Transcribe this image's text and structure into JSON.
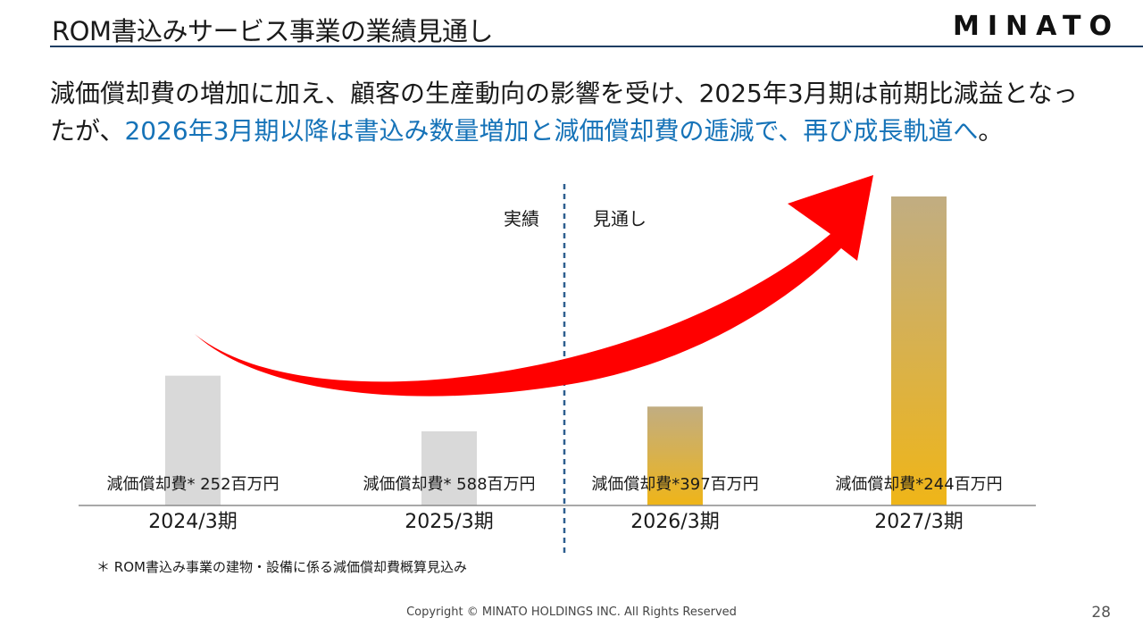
{
  "slide": {
    "title": "ROM書込みサービス事業の業績見通し",
    "logo": "MINATO",
    "headline_plain": "減価償却費の増加に加え、顧客の生産動向の影響を受け、2025年3月期は前期比減益となったが、",
    "headline_highlight": "2026年3月期以降は書込み数量増加と減価償却費の逓減で、再び成長軌道へ",
    "headline_end": "。",
    "footnote": "＊ ROM書込み事業の建物・設備に係る減価償却費概算見込み",
    "copyright": "Copyright © MINATO HOLDINGS INC. All Rights Reserved",
    "page_number": "28"
  },
  "colors": {
    "title_rule": "#1f3e63",
    "highlight_text": "#1673b8",
    "actual_bar": "#d9d9d9",
    "forecast_bar_top": "#c1ad82",
    "forecast_bar_bottom": "#efb518",
    "arrow": "#ff0000",
    "divider": "#2e5f8f"
  },
  "chart_data": {
    "type": "bar",
    "categories": [
      "2024/3期",
      "2025/3期",
      "2026/3期",
      "2027/3期"
    ],
    "values": [
      42,
      24,
      32,
      100
    ],
    "value_scale": "relative (no y-axis printed)",
    "bar_status": [
      "actual",
      "actual",
      "forecast",
      "forecast"
    ],
    "depreciation_labels": [
      "減価償却費* 252百万円",
      "減価償却費* 588百万円",
      "減価償却費*397百万円",
      "減価償却費*244百万円"
    ],
    "period_labels": {
      "actual": "実績",
      "forecast": "見通し"
    },
    "trend_arrow": "upward curved arrow from 2024/3期 to beyond 2027/3期",
    "grid": false,
    "legend": "none"
  }
}
